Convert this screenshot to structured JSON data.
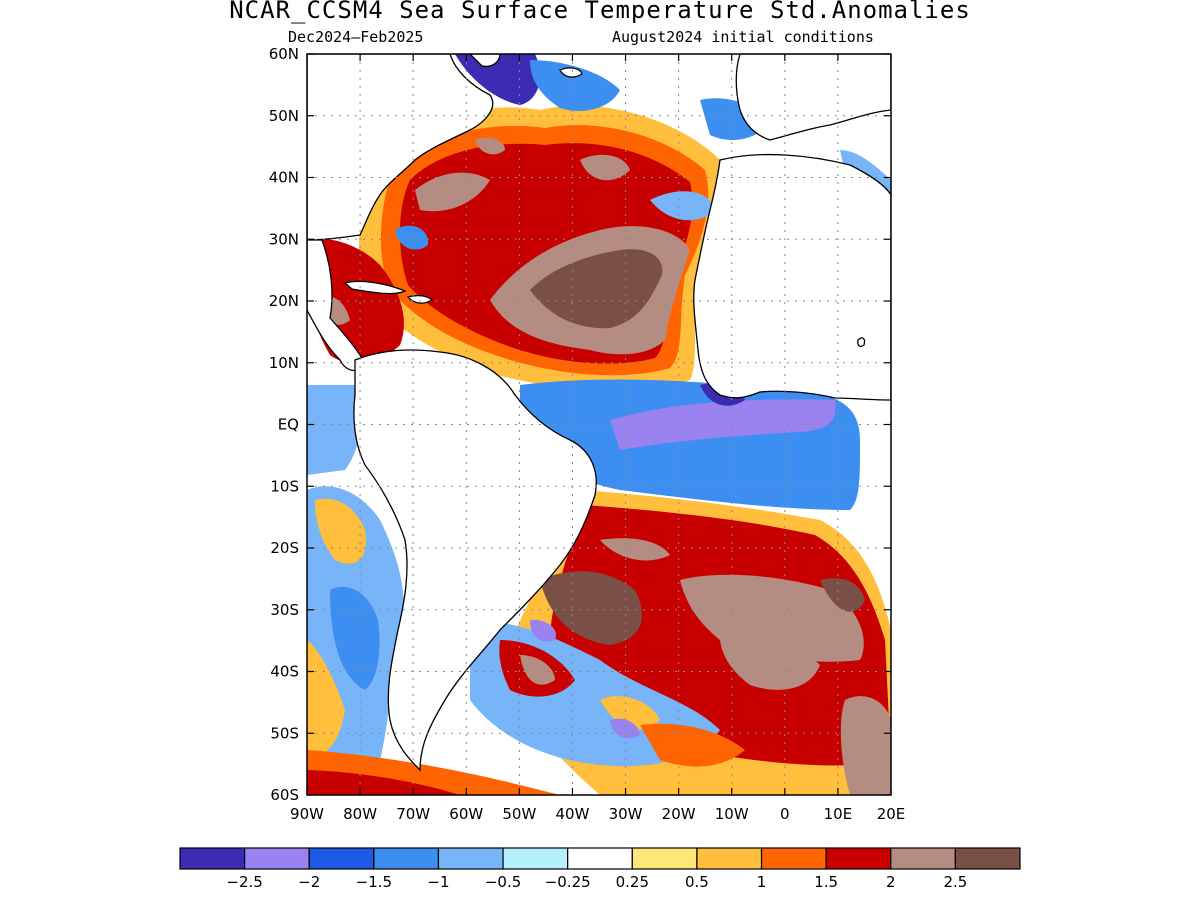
{
  "title": "NCAR_CCSM4 Sea Surface Temperature Std.Anomalies",
  "subtitle_left": "Dec2024–Feb2025",
  "subtitle_right": "August2024 initial conditions",
  "lat_labels": [
    "60N",
    "50N",
    "40N",
    "30N",
    "20N",
    "10N",
    "EQ",
    "10S",
    "20S",
    "30S",
    "40S",
    "50S",
    "60S"
  ],
  "lon_labels": [
    "90W",
    "80W",
    "70W",
    "60W",
    "50W",
    "40W",
    "30W",
    "20W",
    "10W",
    "0",
    "10E",
    "20E"
  ],
  "colorbar": {
    "colors": [
      "#3c2cb4",
      "#9a82f0",
      "#1e5ae6",
      "#3c8ef0",
      "#78b4f8",
      "#b4f0fa",
      "#ffffff",
      "#ffe678",
      "#ffbe3c",
      "#ff6400",
      "#c80000",
      "#b48c82",
      "#7a5046"
    ],
    "labels": [
      "−2.5",
      "−2",
      "−1.5",
      "−1",
      "−0.5",
      "−0.25",
      "0.25",
      "0.5",
      "1",
      "1.5",
      "2",
      "2.5"
    ]
  },
  "palette": {
    "c1": "#3c2cb4",
    "c2": "#9a82f0",
    "c3": "#1e5ae6",
    "c4": "#3c8ef0",
    "c5": "#78b4f8",
    "c6": "#b4f0fa",
    "y1": "#ffe678",
    "y2": "#ffbe3c",
    "o1": "#ff6400",
    "r1": "#c80000",
    "b1": "#b48c82",
    "b2": "#7a5046"
  }
}
